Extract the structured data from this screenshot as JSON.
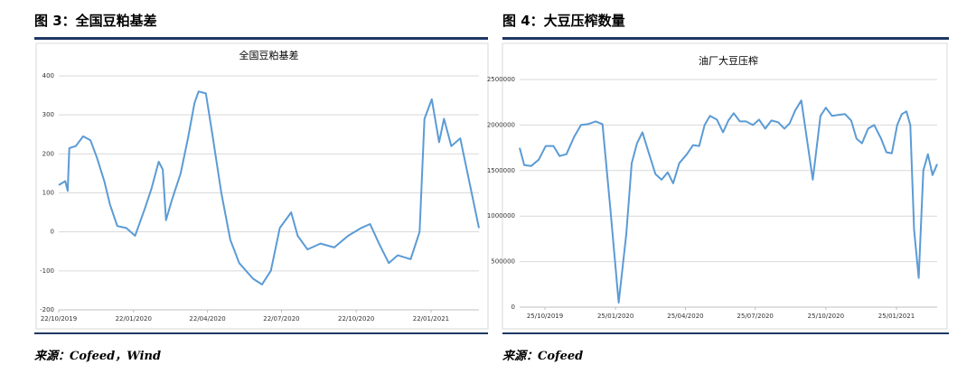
{
  "figures": [
    {
      "heading": "图 3：全国豆粕基差",
      "source": "来源：Cofeed，Wind"
    },
    {
      "heading": "图 4：大豆压榨数量",
      "source": "来源：Cofeed"
    }
  ],
  "chart_data": [
    {
      "type": "line",
      "title": "全国豆粕基差",
      "color": "#5b9bd5",
      "grid": true,
      "x": [
        "22/10/2019",
        "30/10/2019",
        "02/11/2019",
        "04/11/2019",
        "12/11/2019",
        "21/11/2019",
        "30/11/2019",
        "08/12/2019",
        "17/12/2019",
        "24/12/2019",
        "02/01/2020",
        "13/01/2020",
        "24/01/2020",
        "05/02/2020",
        "13/02/2020",
        "22/02/2020",
        "27/02/2020",
        "02/03/2020",
        "09/03/2020",
        "20/03/2020",
        "29/03/2020",
        "06/04/2020",
        "11/04/2020",
        "20/04/2020",
        "28/04/2020",
        "09/05/2020",
        "20/05/2020",
        "31/05/2020",
        "17/06/2020",
        "28/06/2020",
        "09/07/2020",
        "20/07/2020",
        "03/08/2020",
        "11/08/2020",
        "23/08/2020",
        "08/09/2020",
        "25/09/2020",
        "12/10/2020",
        "28/10/2020",
        "08/11/2020",
        "19/11/2020",
        "01/12/2020",
        "12/12/2020",
        "28/12/2020",
        "08/01/2021",
        "14/01/2021",
        "23/01/2021",
        "01/02/2021",
        "07/02/2021",
        "16/02/2021",
        "27/02/2021",
        "06/03/2021",
        "13/03/2021",
        "22/03/2021"
      ],
      "values": [
        120,
        130,
        105,
        215,
        220,
        245,
        235,
        190,
        130,
        70,
        15,
        10,
        -10,
        60,
        110,
        180,
        160,
        30,
        80,
        150,
        240,
        330,
        360,
        355,
        250,
        100,
        -20,
        -80,
        -120,
        -135,
        -100,
        10,
        50,
        -10,
        -45,
        -30,
        -40,
        -10,
        10,
        20,
        -30,
        -80,
        -60,
        -70,
        0,
        290,
        340,
        230,
        290,
        220,
        240,
        170,
        100,
        10
      ],
      "xlim": [
        "22/10/2019",
        "22/03/2021"
      ],
      "xticks": [
        "22/10/2019",
        "22/01/2020",
        "22/04/2020",
        "22/07/2020",
        "22/10/2020",
        "22/01/2021"
      ],
      "ylim": [
        -200,
        400
      ],
      "yticks": [
        -200,
        -100,
        0,
        100,
        200,
        300,
        400
      ]
    },
    {
      "type": "line",
      "title": "油厂大豆压榨",
      "color": "#5b9bd5",
      "grid": true,
      "x": [
        "22/09/2019",
        "28/09/2019",
        "07/10/2019",
        "17/10/2019",
        "26/10/2019",
        "05/11/2019",
        "13/11/2019",
        "22/11/2019",
        "02/12/2019",
        "11/12/2019",
        "20/12/2019",
        "30/12/2019",
        "08/01/2020",
        "18/01/2020",
        "29/01/2020",
        "08/02/2020",
        "15/02/2020",
        "22/02/2020",
        "29/02/2020",
        "08/03/2020",
        "17/03/2020",
        "25/03/2020",
        "02/04/2020",
        "09/04/2020",
        "17/04/2020",
        "27/04/2020",
        "05/05/2020",
        "13/05/2020",
        "20/05/2020",
        "27/05/2020",
        "05/06/2020",
        "13/06/2020",
        "20/06/2020",
        "27/06/2020",
        "05/07/2020",
        "13/07/2020",
        "22/07/2020",
        "30/07/2020",
        "07/08/2020",
        "15/08/2020",
        "24/08/2020",
        "01/09/2020",
        "08/09/2020",
        "15/09/2020",
        "23/09/2020",
        "08/10/2020",
        "18/10/2020",
        "25/10/2020",
        "02/11/2020",
        "10/11/2020",
        "19/11/2020",
        "27/11/2020",
        "04/12/2020",
        "11/12/2020",
        "19/12/2020",
        "27/12/2020",
        "05/01/2021",
        "12/01/2021",
        "19/01/2021",
        "26/01/2021",
        "01/02/2021",
        "07/02/2021",
        "12/02/2021",
        "17/02/2021",
        "23/02/2021",
        "01/03/2021",
        "07/03/2021",
        "13/03/2021",
        "19/03/2021"
      ],
      "values": [
        1750000,
        1560000,
        1550000,
        1620000,
        1770000,
        1770000,
        1660000,
        1680000,
        1870000,
        2000000,
        2010000,
        2040000,
        2010000,
        1100000,
        50000,
        800000,
        1580000,
        1800000,
        1920000,
        1700000,
        1460000,
        1400000,
        1480000,
        1360000,
        1580000,
        1680000,
        1780000,
        1770000,
        2000000,
        2100000,
        2060000,
        1920000,
        2050000,
        2130000,
        2040000,
        2040000,
        2000000,
        2060000,
        1960000,
        2050000,
        2030000,
        1960000,
        2020000,
        2160000,
        2270000,
        1400000,
        2100000,
        2190000,
        2100000,
        2110000,
        2120000,
        2050000,
        1850000,
        1800000,
        1960000,
        2000000,
        1850000,
        1700000,
        1690000,
        2000000,
        2120000,
        2150000,
        2000000,
        850000,
        320000,
        1500000,
        1680000,
        1450000,
        1570000
      ],
      "xlim": [
        "22/09/2019",
        "19/03/2021"
      ],
      "xticks": [
        "25/10/2019",
        "25/01/2020",
        "25/04/2020",
        "25/07/2020",
        "25/10/2020",
        "25/01/2021"
      ],
      "ylim": [
        0,
        2500000
      ],
      "yticks": [
        0,
        500000,
        1000000,
        1500000,
        2000000,
        2500000
      ]
    }
  ]
}
